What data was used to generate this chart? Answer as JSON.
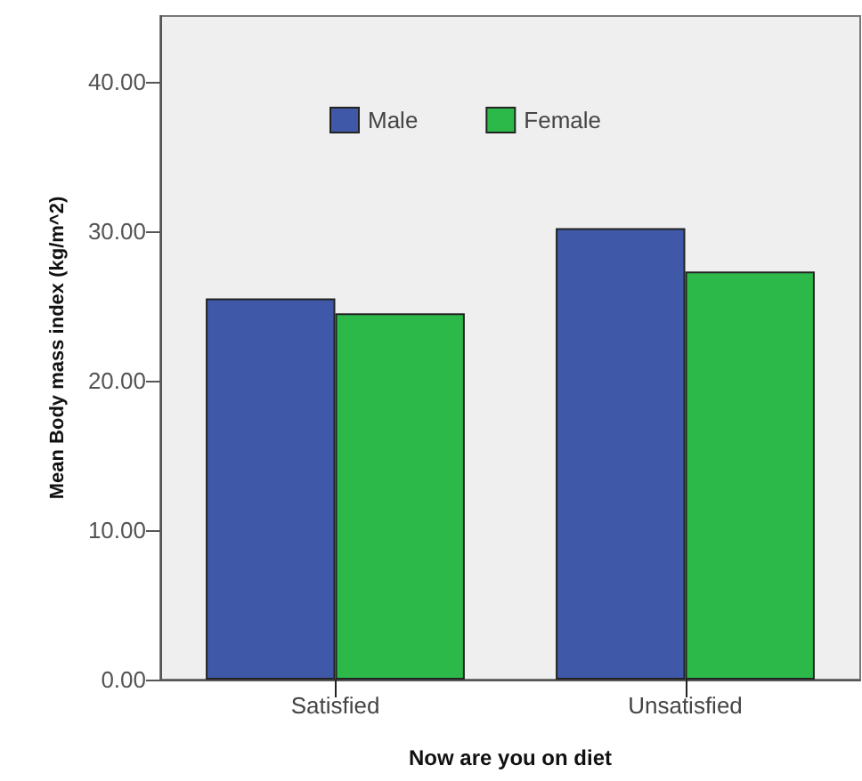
{
  "chart_data": {
    "type": "bar",
    "xlabel": "Now are you on diet",
    "ylabel": "Mean Body mass index (kg/m^2)",
    "categories": [
      "Satisfied",
      "Unsatisfied"
    ],
    "series": [
      {
        "name": "Male",
        "color": "#3f58a8",
        "values": [
          25.5,
          30.2
        ]
      },
      {
        "name": "Female",
        "color": "#2db84a",
        "values": [
          24.5,
          27.3
        ]
      }
    ],
    "ylim": [
      0,
      44.4
    ],
    "yticks": [
      {
        "value": 0,
        "label": "0.00"
      },
      {
        "value": 10,
        "label": "10.00"
      },
      {
        "value": 20,
        "label": "20.00"
      },
      {
        "value": 30,
        "label": "30.00"
      },
      {
        "value": 40,
        "label": "40.00"
      }
    ],
    "grid": false,
    "legend": "top"
  }
}
